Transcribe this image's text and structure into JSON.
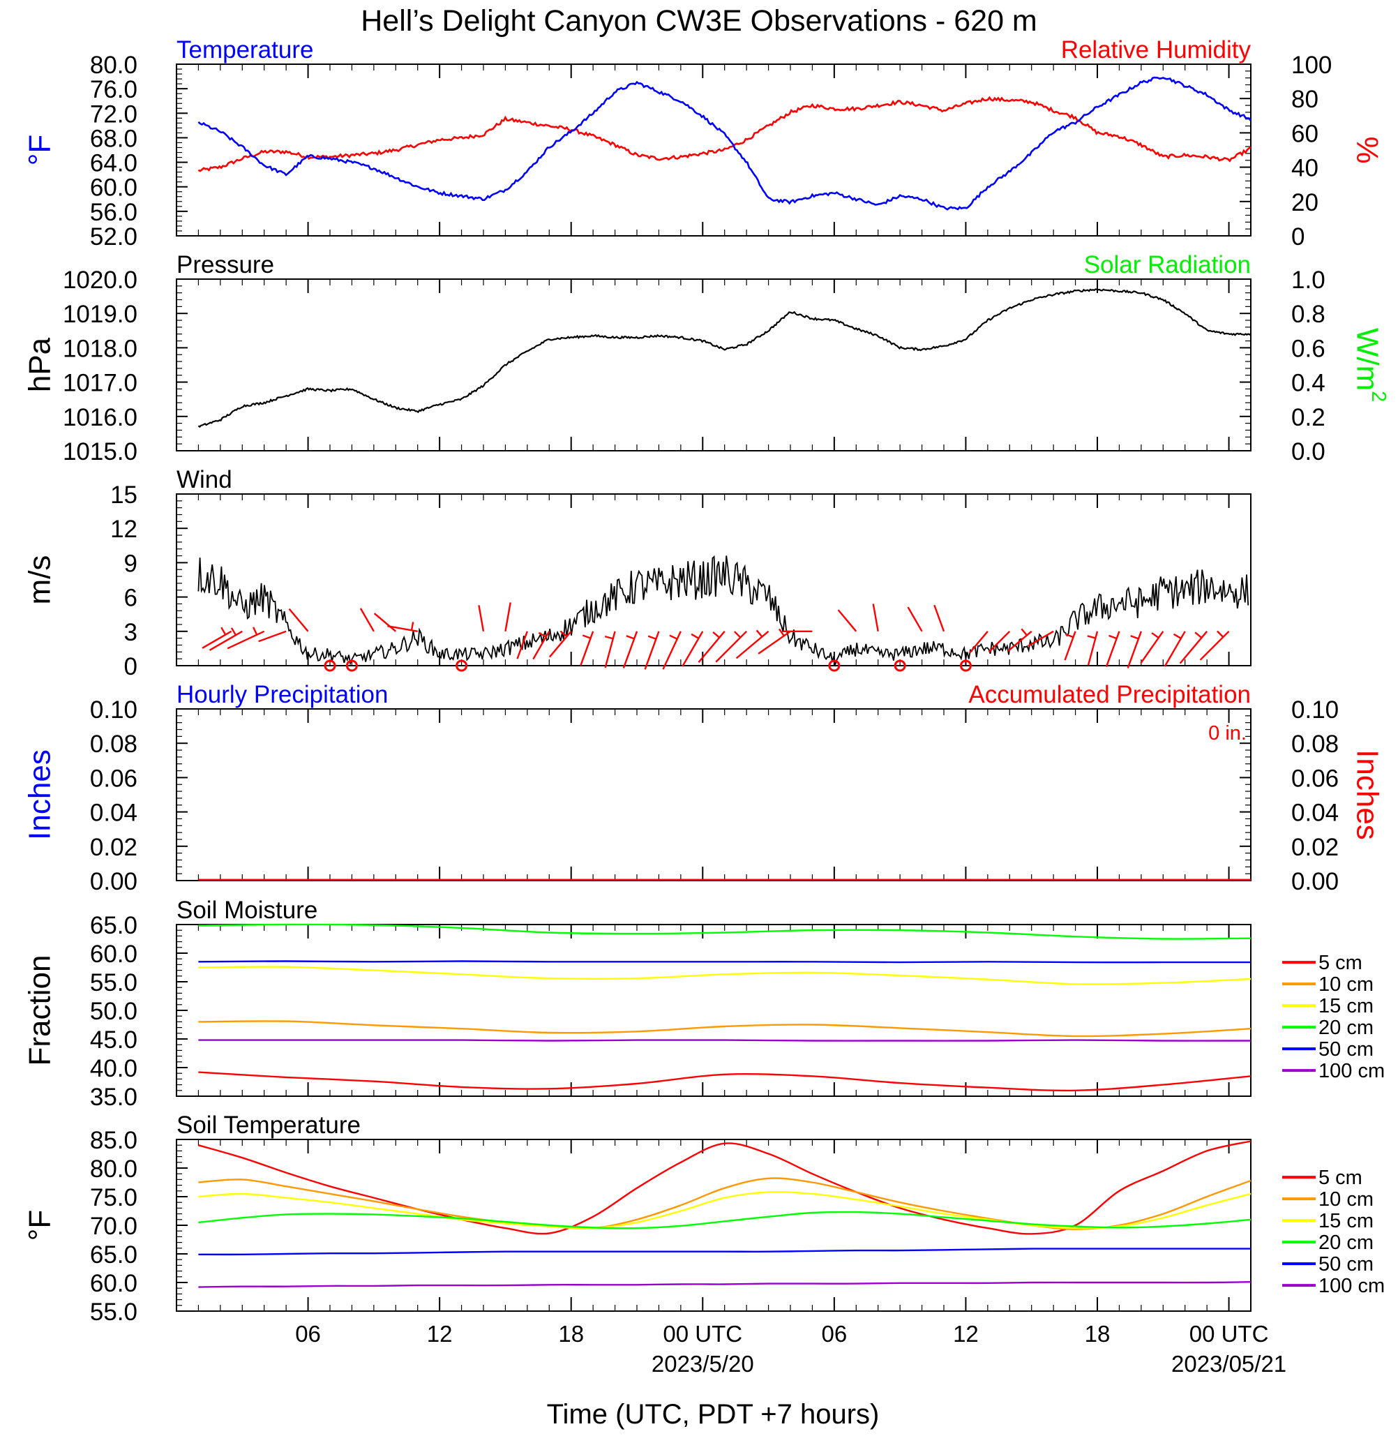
{
  "figure": {
    "title": "Hell’s Delight Canyon CW3E Observations - 620 m",
    "x_axis_title": "Time (UTC, PDT +7 hours)",
    "x_tick_labels": [
      "06",
      "12",
      "18",
      "00 UTC",
      "06",
      "12",
      "18",
      "00 UTC"
    ],
    "x_date_labels": [
      "2023/5/20",
      "2023/05/21"
    ]
  },
  "colors": {
    "blue": "#0000ff",
    "red": "#ff0000",
    "green": "#00ee00",
    "black": "#000000",
    "orange": "#ff9900",
    "yellow": "#ffff00",
    "lime": "#00ff00",
    "purple": "#9900cc"
  },
  "chart_data": [
    {
      "id": "temp_rh",
      "type": "line",
      "title_left": "Temperature",
      "title_right": "Relative Humidity",
      "ylabel_left": "°F",
      "ylabel_right": "%",
      "ylim_left": [
        52,
        80
      ],
      "ylim_right": [
        0,
        100
      ],
      "yticks_left": [
        "80.0",
        "76.0",
        "72.0",
        "68.0",
        "64.0",
        "60.0",
        "56.0",
        "52.0"
      ],
      "yticks_right": [
        "100",
        "80",
        "60",
        "40",
        "20",
        "0"
      ],
      "x_hours": [
        1,
        2,
        3,
        4,
        5,
        6,
        7,
        8,
        9,
        10,
        11,
        12,
        13,
        14,
        15,
        16,
        17,
        18,
        19,
        20,
        21,
        22,
        23,
        24,
        25,
        26,
        27,
        28,
        29,
        30,
        31,
        32,
        33,
        34,
        35,
        36,
        37,
        38,
        39,
        40,
        41,
        42,
        43,
        44,
        45,
        46,
        47,
        48,
        49
      ],
      "temperature_f": [
        70.5,
        69.0,
        66.5,
        63.5,
        62.0,
        65.0,
        64.6,
        64.0,
        63.0,
        61.5,
        60.0,
        59.0,
        58.5,
        58.0,
        59.5,
        62.5,
        66.5,
        69.0,
        72.0,
        75.5,
        77.0,
        75.5,
        74.0,
        71.5,
        68.5,
        64.0,
        58.0,
        57.5,
        58.5,
        59.0,
        58.0,
        57.0,
        58.5,
        58.0,
        56.5,
        56.5,
        60.0,
        62.5,
        65.5,
        69.0,
        70.5,
        73.0,
        75.0,
        77.0,
        78.0,
        76.5,
        75.0,
        72.5,
        71.0
      ],
      "humidity_pct": [
        38,
        40,
        45,
        49,
        49,
        46,
        46,
        47,
        48,
        50,
        53,
        56,
        57,
        59,
        68,
        66,
        64,
        62,
        58,
        53,
        47,
        45,
        46,
        48,
        50,
        56,
        64,
        72,
        76,
        74,
        74,
        76,
        78,
        76,
        73,
        77,
        80,
        79,
        78,
        73,
        69,
        60,
        58,
        53,
        46,
        47,
        46,
        44,
        51
      ]
    },
    {
      "id": "pressure",
      "type": "line",
      "title_left": "Pressure",
      "title_right": "Solar Radiation",
      "ylabel_left": "hPa",
      "ylabel_right": "W/m",
      "ylabel_right_sup": "2",
      "ylim_left": [
        1015,
        1020
      ],
      "ylim_right": [
        0,
        1
      ],
      "yticks_left": [
        "1020.0",
        "1019.0",
        "1018.0",
        "1017.0",
        "1016.0",
        "1015.0"
      ],
      "yticks_right": [
        "1.0",
        "0.8",
        "0.6",
        "0.4",
        "0.2",
        "0.0"
      ],
      "x_hours": [
        1,
        2,
        3,
        4,
        5,
        6,
        7,
        8,
        9,
        10,
        11,
        12,
        13,
        14,
        15,
        16,
        17,
        18,
        19,
        20,
        21,
        22,
        23,
        24,
        25,
        26,
        27,
        28,
        29,
        30,
        31,
        32,
        33,
        34,
        35,
        36,
        37,
        38,
        39,
        40,
        41,
        42,
        43,
        44,
        45,
        46,
        47,
        48,
        49
      ],
      "pressure_hpa": [
        1015.7,
        1015.9,
        1016.3,
        1016.4,
        1016.6,
        1016.8,
        1016.75,
        1016.8,
        1016.5,
        1016.25,
        1016.15,
        1016.35,
        1016.5,
        1016.9,
        1017.5,
        1017.9,
        1018.25,
        1018.3,
        1018.35,
        1018.3,
        1018.3,
        1018.35,
        1018.3,
        1018.2,
        1017.95,
        1018.1,
        1018.5,
        1019.05,
        1018.85,
        1018.8,
        1018.55,
        1018.35,
        1018.0,
        1017.95,
        1018.05,
        1018.25,
        1018.8,
        1019.15,
        1019.4,
        1019.55,
        1019.65,
        1019.7,
        1019.65,
        1019.6,
        1019.4,
        1019.0,
        1018.5,
        1018.4,
        1018.4
      ]
    },
    {
      "id": "wind",
      "type": "line",
      "title_left": "Wind",
      "ylabel_left": "m/s",
      "ylim_left": [
        0,
        15
      ],
      "yticks_left": [
        "15",
        "12",
        "9",
        "6",
        "3",
        "0"
      ],
      "x_hours": [
        1,
        2,
        3,
        4,
        5,
        6,
        7,
        8,
        9,
        10,
        11,
        12,
        13,
        14,
        15,
        16,
        17,
        18,
        19,
        20,
        21,
        22,
        23,
        24,
        25,
        26,
        27,
        28,
        29,
        30,
        31,
        32,
        33,
        34,
        35,
        36,
        37,
        38,
        39,
        40,
        41,
        42,
        43,
        44,
        45,
        46,
        47,
        48,
        49
      ],
      "wind_speed_ms": [
        8.0,
        7.5,
        5.0,
        6.0,
        3.5,
        1.0,
        1.0,
        0.5,
        1.0,
        1.5,
        2.5,
        1.0,
        1.0,
        1.0,
        1.5,
        2.0,
        2.5,
        3.5,
        5.0,
        6.0,
        7.0,
        7.0,
        7.5,
        7.5,
        8.0,
        7.0,
        6.0,
        2.5,
        1.5,
        0.5,
        1.5,
        1.0,
        1.0,
        1.5,
        1.5,
        1.0,
        1.5,
        1.5,
        2.0,
        2.0,
        4.0,
        5.0,
        5.5,
        5.5,
        6.5,
        6.5,
        7.0,
        6.5,
        6.5
      ],
      "calm_hours": [
        7,
        8,
        13,
        30,
        33,
        36
      ],
      "barb_hours": [
        2.5,
        3,
        4,
        5,
        6,
        9,
        10,
        11,
        14,
        15,
        16,
        17,
        18,
        19,
        20,
        21,
        22,
        23,
        24,
        25,
        26,
        27,
        28,
        29,
        31,
        32,
        34,
        35,
        37,
        38,
        39,
        40,
        41,
        42,
        43,
        44,
        45,
        46,
        47,
        48
      ],
      "barb_speed_ms": [
        3.5,
        5.0,
        6.0,
        2.0,
        2.0,
        1.0,
        1.5,
        2.5,
        1.0,
        2.0,
        2.0,
        3.0,
        3.5,
        4.5,
        5.0,
        5.5,
        6.0,
        6.5,
        6.0,
        6.0,
        7.0,
        6.5,
        5.5,
        2.0,
        1.5,
        1.5,
        1.5,
        1.5,
        1.5,
        2.0,
        2.5,
        2.0,
        2.5,
        4.0,
        5.0,
        5.5,
        5.5,
        6.0,
        6.5,
        6.0
      ],
      "barb_dir_deg": [
        240,
        240,
        245,
        250,
        320,
        330,
        310,
        280,
        350,
        10,
        200,
        210,
        220,
        200,
        195,
        200,
        200,
        205,
        210,
        220,
        225,
        230,
        235,
        270,
        320,
        350,
        330,
        340,
        220,
        225,
        230,
        240,
        200,
        195,
        200,
        200,
        215,
        210,
        220,
        225
      ]
    },
    {
      "id": "precip",
      "type": "line",
      "title_left": "Hourly Precipitation",
      "title_right": "Accumulated Precipitation",
      "annotation": "0 in.",
      "ylabel_left": "Inches",
      "ylabel_right": "Inches",
      "ylim_left": [
        0,
        0.1
      ],
      "ylim_right": [
        0,
        0.1
      ],
      "yticks_left": [
        "0.10",
        "0.08",
        "0.06",
        "0.04",
        "0.02",
        "0.00"
      ],
      "yticks_right": [
        "0.10",
        "0.08",
        "0.06",
        "0.04",
        "0.02",
        "0.00"
      ],
      "x_hours": [
        1,
        49
      ],
      "hourly_in": [
        0,
        0
      ],
      "accum_in": [
        0,
        0
      ]
    },
    {
      "id": "soil_moisture",
      "type": "line",
      "title_left": "Soil Moisture",
      "ylabel_left": "Fraction",
      "ylim_left": [
        35,
        65
      ],
      "yticks_left": [
        "65.0",
        "60.0",
        "55.0",
        "50.0",
        "45.0",
        "40.0",
        "35.0"
      ],
      "x_hours": [
        1,
        5,
        9,
        13,
        17,
        21,
        25,
        29,
        33,
        37,
        41,
        45,
        49
      ],
      "series": [
        {
          "name": "5 cm",
          "color_key": "red",
          "values": [
            39.2,
            38.3,
            37.6,
            36.6,
            36.3,
            37.2,
            38.8,
            38.5,
            37.3,
            36.5,
            36.0,
            37.0,
            38.5
          ]
        },
        {
          "name": "10 cm",
          "color_key": "orange",
          "values": [
            48.0,
            48.1,
            47.4,
            46.8,
            46.1,
            46.3,
            47.2,
            47.5,
            46.9,
            46.2,
            45.5,
            45.9,
            46.8
          ]
        },
        {
          "name": "15 cm",
          "color_key": "yellow",
          "values": [
            57.5,
            57.6,
            57.0,
            56.3,
            55.6,
            55.6,
            56.3,
            56.6,
            56.1,
            55.4,
            54.6,
            54.8,
            55.5
          ]
        },
        {
          "name": "20 cm",
          "color_key": "lime",
          "values": [
            64.8,
            65.0,
            64.9,
            64.4,
            63.6,
            63.4,
            63.6,
            64.0,
            64.0,
            63.6,
            62.9,
            62.5,
            62.6
          ]
        },
        {
          "name": "50 cm",
          "color_key": "blue",
          "values": [
            58.5,
            58.6,
            58.5,
            58.6,
            58.5,
            58.5,
            58.5,
            58.5,
            58.4,
            58.5,
            58.4,
            58.4,
            58.4
          ]
        },
        {
          "name": "100 cm",
          "color_key": "purple",
          "values": [
            44.8,
            44.8,
            44.8,
            44.8,
            44.7,
            44.8,
            44.8,
            44.7,
            44.7,
            44.7,
            44.8,
            44.7,
            44.7
          ]
        }
      ]
    },
    {
      "id": "soil_temperature",
      "type": "line",
      "title_left": "Soil Temperature",
      "ylabel_left": "°F",
      "ylim_left": [
        55,
        85
      ],
      "yticks_left": [
        "85.0",
        "80.0",
        "75.0",
        "70.0",
        "65.0",
        "60.0",
        "55.0"
      ],
      "x_hours": [
        1,
        3,
        5,
        7,
        9,
        11,
        13,
        15,
        17,
        19,
        21,
        23,
        25,
        27,
        29,
        31,
        33,
        35,
        37,
        39,
        41,
        43,
        45,
        47,
        49
      ],
      "series": [
        {
          "name": "5 cm",
          "color_key": "red",
          "values": [
            84.0,
            81.8,
            79.2,
            76.8,
            74.8,
            72.8,
            71.0,
            69.5,
            68.6,
            71.5,
            76.5,
            81.0,
            84.3,
            82.5,
            79.0,
            75.8,
            73.0,
            71.0,
            69.5,
            68.5,
            70.0,
            76.0,
            79.5,
            83.0,
            84.7
          ]
        },
        {
          "name": "10 cm",
          "color_key": "orange",
          "values": [
            77.5,
            78.0,
            76.8,
            75.5,
            74.2,
            72.8,
            71.5,
            70.5,
            69.8,
            69.5,
            71.0,
            73.5,
            76.5,
            78.2,
            77.5,
            75.8,
            74.0,
            72.5,
            71.2,
            70.0,
            69.3,
            70.0,
            72.0,
            75.0,
            77.8
          ]
        },
        {
          "name": "15 cm",
          "color_key": "yellow",
          "values": [
            75.0,
            75.5,
            74.8,
            74.0,
            73.0,
            72.0,
            71.0,
            70.3,
            69.8,
            69.5,
            70.5,
            72.5,
            74.8,
            75.8,
            75.5,
            74.5,
            73.3,
            72.0,
            71.0,
            70.0,
            69.5,
            69.8,
            71.3,
            73.5,
            75.5
          ]
        },
        {
          "name": "20 cm",
          "color_key": "lime",
          "values": [
            70.5,
            71.3,
            71.9,
            72.0,
            71.9,
            71.6,
            71.2,
            70.6,
            70.0,
            69.6,
            69.5,
            69.9,
            70.7,
            71.5,
            72.2,
            72.3,
            72.0,
            71.4,
            70.8,
            70.2,
            69.8,
            69.6,
            69.8,
            70.3,
            71.0
          ]
        },
        {
          "name": "50 cm",
          "color_key": "blue",
          "values": [
            64.9,
            64.9,
            65.0,
            65.1,
            65.1,
            65.2,
            65.3,
            65.4,
            65.4,
            65.4,
            65.4,
            65.4,
            65.4,
            65.4,
            65.5,
            65.6,
            65.6,
            65.7,
            65.8,
            65.9,
            65.9,
            65.9,
            65.9,
            65.9,
            65.9
          ]
        },
        {
          "name": "100 cm",
          "color_key": "purple",
          "values": [
            59.2,
            59.3,
            59.3,
            59.4,
            59.4,
            59.5,
            59.5,
            59.5,
            59.6,
            59.6,
            59.6,
            59.7,
            59.7,
            59.8,
            59.8,
            59.8,
            59.9,
            59.9,
            59.9,
            60.0,
            60.0,
            60.0,
            60.0,
            60.0,
            60.1
          ]
        }
      ]
    }
  ]
}
